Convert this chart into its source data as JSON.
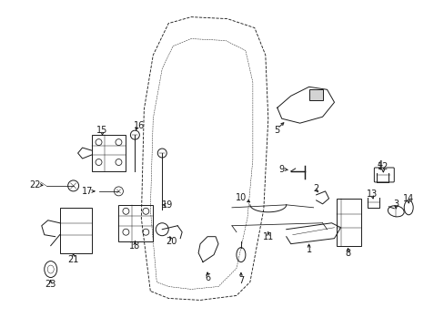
{
  "background_color": "#ffffff",
  "fig_width": 4.89,
  "fig_height": 3.6,
  "dpi": 100,
  "line_color": "#1a1a1a",
  "lw": 0.7,
  "fs": 7.0
}
